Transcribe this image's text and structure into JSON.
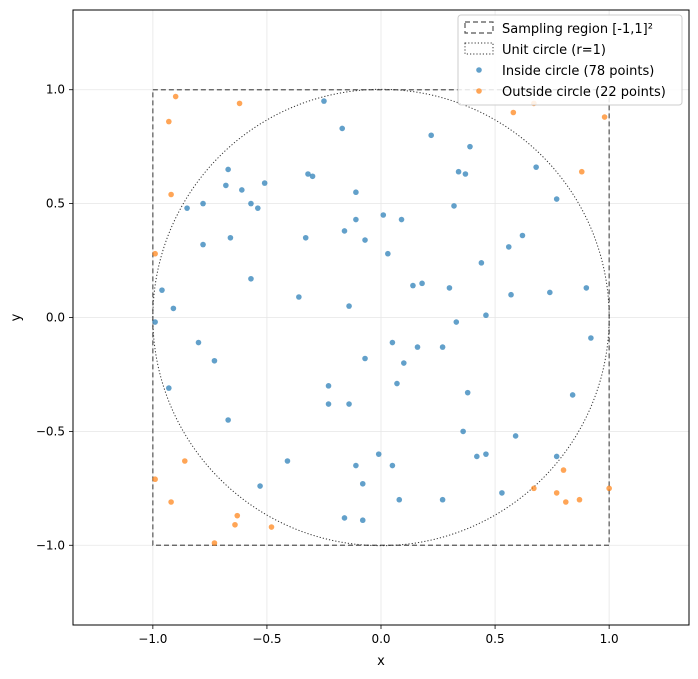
{
  "chart_data": {
    "type": "scatter",
    "title": "",
    "xlabel": "x",
    "ylabel": "y",
    "xlim": [
      -1.35,
      1.35
    ],
    "ylim": [
      -1.35,
      1.35
    ],
    "xticks": [
      -1.0,
      -0.5,
      0.0,
      0.5,
      1.0
    ],
    "yticks": [
      -1.0,
      -0.5,
      0.0,
      0.5,
      1.0
    ],
    "xtick_labels": [
      "−1.0",
      "−0.5",
      "0.0",
      "0.5",
      "1.0"
    ],
    "ytick_labels": [
      "−1.0",
      "−0.5",
      "0.0",
      "0.5",
      "1.0"
    ],
    "grid": true,
    "legend_position": "top-right",
    "colors": {
      "inside": "#1f77b4",
      "outside": "#ff7f0e",
      "square": "#555555",
      "circle": "#333333",
      "grid": "#e6e6e6"
    },
    "shapes": {
      "square": {
        "name": "Sampling region [-1,1]²",
        "x": [
          -1,
          1
        ],
        "y": [
          -1,
          1
        ],
        "style": "dashed"
      },
      "circle": {
        "name": "Unit circle (r=1)",
        "center": [
          0,
          0
        ],
        "r": 1,
        "style": "dotted"
      }
    },
    "series": [
      {
        "name": "Inside circle (78 points)",
        "points": [
          [
            -0.25,
            0.95
          ],
          [
            -0.17,
            0.83
          ],
          [
            0.22,
            0.8
          ],
          [
            0.39,
            0.75
          ],
          [
            0.68,
            0.66
          ],
          [
            0.77,
            0.52
          ],
          [
            -0.67,
            0.65
          ],
          [
            -0.68,
            0.58
          ],
          [
            -0.61,
            0.56
          ],
          [
            -0.57,
            0.5
          ],
          [
            -0.54,
            0.48
          ],
          [
            -0.51,
            0.59
          ],
          [
            -0.32,
            0.63
          ],
          [
            -0.3,
            0.62
          ],
          [
            -0.11,
            0.55
          ],
          [
            0.34,
            0.64
          ],
          [
            0.37,
            0.63
          ],
          [
            0.32,
            0.49
          ],
          [
            -0.85,
            0.48
          ],
          [
            -0.78,
            0.5
          ],
          [
            -0.78,
            0.32
          ],
          [
            -0.66,
            0.35
          ],
          [
            -0.33,
            0.35
          ],
          [
            -0.16,
            0.38
          ],
          [
            -0.11,
            0.43
          ],
          [
            -0.07,
            0.34
          ],
          [
            0.01,
            0.45
          ],
          [
            0.03,
            0.28
          ],
          [
            0.09,
            0.43
          ],
          [
            0.44,
            0.24
          ],
          [
            0.56,
            0.31
          ],
          [
            0.62,
            0.36
          ],
          [
            -0.96,
            0.12
          ],
          [
            -0.91,
            0.04
          ],
          [
            -0.57,
            0.17
          ],
          [
            -0.36,
            0.09
          ],
          [
            -0.14,
            0.05
          ],
          [
            0.14,
            0.14
          ],
          [
            0.18,
            0.15
          ],
          [
            0.3,
            0.13
          ],
          [
            0.57,
            0.1
          ],
          [
            0.74,
            0.11
          ],
          [
            0.9,
            0.13
          ],
          [
            -0.99,
            -0.02
          ],
          [
            0.33,
            -0.02
          ],
          [
            0.46,
            0.01
          ],
          [
            -0.8,
            -0.11
          ],
          [
            -0.73,
            -0.19
          ],
          [
            -0.93,
            -0.31
          ],
          [
            -0.07,
            -0.18
          ],
          [
            0.05,
            -0.11
          ],
          [
            0.1,
            -0.2
          ],
          [
            0.16,
            -0.13
          ],
          [
            0.27,
            -0.13
          ],
          [
            0.92,
            -0.09
          ],
          [
            -0.23,
            -0.3
          ],
          [
            -0.23,
            -0.38
          ],
          [
            -0.14,
            -0.38
          ],
          [
            0.07,
            -0.29
          ],
          [
            0.38,
            -0.33
          ],
          [
            0.84,
            -0.34
          ],
          [
            -0.67,
            -0.45
          ],
          [
            0.36,
            -0.5
          ],
          [
            0.59,
            -0.52
          ],
          [
            0.42,
            -0.61
          ],
          [
            0.46,
            -0.6
          ],
          [
            -0.41,
            -0.63
          ],
          [
            -0.01,
            -0.6
          ],
          [
            -0.11,
            -0.65
          ],
          [
            0.05,
            -0.65
          ],
          [
            0.77,
            -0.61
          ],
          [
            -0.53,
            -0.74
          ],
          [
            -0.08,
            -0.73
          ],
          [
            0.53,
            -0.77
          ],
          [
            0.08,
            -0.8
          ],
          [
            0.27,
            -0.8
          ],
          [
            -0.16,
            -0.88
          ],
          [
            -0.08,
            -0.89
          ]
        ]
      },
      {
        "name": "Outside circle (22 points)",
        "points": [
          [
            -0.9,
            0.97
          ],
          [
            -0.62,
            0.94
          ],
          [
            0.67,
            0.94
          ],
          [
            -0.93,
            0.86
          ],
          [
            0.58,
            0.9
          ],
          [
            0.98,
            0.88
          ],
          [
            -0.92,
            0.54
          ],
          [
            0.88,
            0.64
          ],
          [
            -0.99,
            0.28
          ],
          [
            -0.99,
            -0.71
          ],
          [
            -0.86,
            -0.63
          ],
          [
            -0.92,
            -0.81
          ],
          [
            0.67,
            -0.75
          ],
          [
            0.8,
            -0.67
          ],
          [
            0.77,
            -0.77
          ],
          [
            0.81,
            -0.81
          ],
          [
            0.87,
            -0.8
          ],
          [
            1.0,
            -0.75
          ],
          [
            -0.63,
            -0.87
          ],
          [
            -0.64,
            -0.91
          ],
          [
            -0.48,
            -0.92
          ],
          [
            -0.73,
            -0.99
          ]
        ]
      }
    ]
  }
}
